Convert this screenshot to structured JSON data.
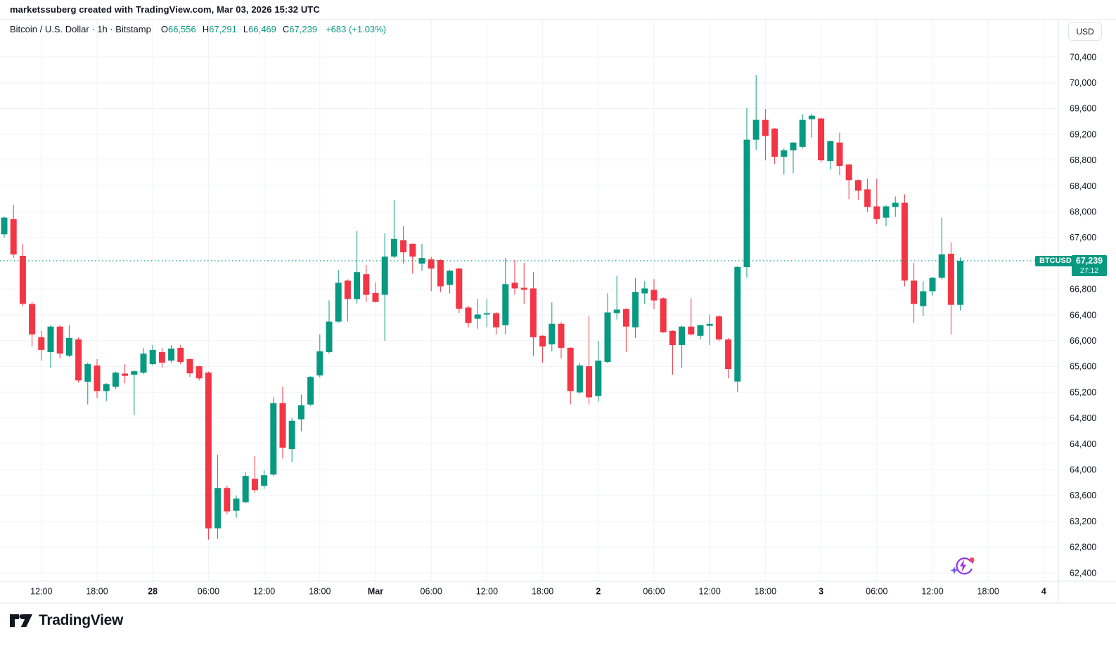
{
  "attribution": {
    "text": "marketssuberg created with TradingView.com, Mar 03, 2026 15:32 UTC"
  },
  "legend": {
    "title": "Bitcoin / U.S. Dollar · 1h · Bitstamp",
    "ohlc": [
      {
        "label": "O",
        "value": "66,556"
      },
      {
        "label": "H",
        "value": "67,291"
      },
      {
        "label": "L",
        "value": "66,469"
      },
      {
        "label": "C",
        "value": "67,239"
      }
    ],
    "change": "+683 (+1.03%)"
  },
  "price_scale": {
    "currency_button": "USD"
  },
  "price_line": {
    "symbol": "BTCUSD",
    "price": "67,239",
    "countdown": "27:12",
    "value": 67239
  },
  "footer": {
    "brand": "TradingView"
  },
  "colors": {
    "up": "#089981",
    "down": "#F23645",
    "text": "#131722",
    "grid": "#F0F2F6",
    "border": "#E0E3EB",
    "accent": "#089981",
    "icon_purple": "#9333EA",
    "icon_red": "#F6465D",
    "icon_star": "#6D5BF6"
  },
  "chart_data": {
    "type": "candlestick",
    "symbol": "BTCUSD",
    "pair": "Bitcoin / U.S. Dollar",
    "interval": "1h",
    "exchange": "Bitstamp",
    "start_time": "2026-02-27 08:00 UTC",
    "interval_hours": 1,
    "grid": true,
    "y_axis_side": "right",
    "y_tick_step": 400,
    "y_ticks": [
      70400,
      70000,
      69600,
      69200,
      68800,
      68400,
      68000,
      67600,
      66800,
      66400,
      66000,
      65600,
      65200,
      64800,
      64400,
      64000,
      63600,
      63200,
      62800,
      62400
    ],
    "ylim": [
      62212,
      70982
    ],
    "last_close": 67239,
    "time_labels": [
      {
        "label": "12:00",
        "index": 4,
        "bold": false
      },
      {
        "label": "18:00",
        "index": 10,
        "bold": false
      },
      {
        "label": "28",
        "index": 16,
        "bold": true
      },
      {
        "label": "06:00",
        "index": 22,
        "bold": false
      },
      {
        "label": "12:00",
        "index": 28,
        "bold": false
      },
      {
        "label": "18:00",
        "index": 34,
        "bold": false
      },
      {
        "label": "Mar",
        "index": 40,
        "bold": true
      },
      {
        "label": "06:00",
        "index": 46,
        "bold": false
      },
      {
        "label": "12:00",
        "index": 52,
        "bold": false
      },
      {
        "label": "18:00",
        "index": 58,
        "bold": false
      },
      {
        "label": "2",
        "index": 64,
        "bold": true
      },
      {
        "label": "06:00",
        "index": 70,
        "bold": false
      },
      {
        "label": "12:00",
        "index": 76,
        "bold": false
      },
      {
        "label": "18:00",
        "index": 82,
        "bold": false
      },
      {
        "label": "3",
        "index": 88,
        "bold": true
      },
      {
        "label": "06:00",
        "index": 94,
        "bold": false
      },
      {
        "label": "12:00",
        "index": 100,
        "bold": false
      },
      {
        "label": "18:00",
        "index": 106,
        "bold": false
      },
      {
        "label": "4",
        "index": 112,
        "bold": true
      }
    ],
    "candles": [
      [
        67650,
        67920,
        67600,
        67908
      ],
      [
        67886,
        68105,
        67282,
        67337
      ],
      [
        67315,
        67502,
        66536,
        66569
      ],
      [
        66569,
        66600,
        65910,
        66097
      ],
      [
        66053,
        66152,
        65691,
        65856
      ],
      [
        65822,
        66240,
        65581,
        66218
      ],
      [
        66218,
        66240,
        65724,
        65800
      ],
      [
        65767,
        66240,
        65746,
        66042
      ],
      [
        66020,
        66050,
        65350,
        65383
      ],
      [
        65361,
        65660,
        65010,
        65636
      ],
      [
        65614,
        65713,
        65109,
        65219
      ],
      [
        65219,
        65340,
        65065,
        65328
      ],
      [
        65284,
        65520,
        65250,
        65504
      ],
      [
        65490,
        65636,
        65339,
        65455
      ],
      [
        65471,
        65540,
        64844,
        65526
      ],
      [
        65504,
        65888,
        65480,
        65800
      ],
      [
        65636,
        65932,
        65614,
        65856
      ],
      [
        65822,
        65888,
        65581,
        65658
      ],
      [
        65691,
        65932,
        65658,
        65878
      ],
      [
        65888,
        65930,
        65636,
        65669
      ],
      [
        65713,
        65720,
        65438,
        65493
      ],
      [
        65603,
        65610,
        65383,
        65416
      ],
      [
        65504,
        65520,
        62914,
        63089
      ],
      [
        63089,
        64231,
        62925,
        63715
      ],
      [
        63715,
        63750,
        63310,
        63352
      ],
      [
        63363,
        63600,
        63254,
        63550
      ],
      [
        63495,
        63957,
        63480,
        63902
      ],
      [
        63858,
        64209,
        63638,
        63682
      ],
      [
        63748,
        63990,
        63700,
        63913
      ],
      [
        63924,
        65120,
        63900,
        65032
      ],
      [
        65032,
        65284,
        64176,
        64341
      ],
      [
        64319,
        64800,
        64121,
        64758
      ],
      [
        64781,
        65164,
        64594,
        65000
      ],
      [
        65010,
        65449,
        64990,
        65438
      ],
      [
        65460,
        66097,
        65430,
        65834
      ],
      [
        65822,
        66624,
        65800,
        66295
      ],
      [
        66295,
        67096,
        66280,
        66898
      ],
      [
        66931,
        66950,
        66295,
        66645
      ],
      [
        66645,
        67701,
        66569,
        67063
      ],
      [
        67030,
        67173,
        66602,
        66711
      ],
      [
        66740,
        66900,
        66591,
        66600
      ],
      [
        66711,
        67668,
        65998,
        67304
      ],
      [
        67304,
        68181,
        67280,
        67579
      ],
      [
        67557,
        67777,
        67195,
        67370
      ],
      [
        67502,
        67510,
        67041,
        67304
      ],
      [
        67195,
        67502,
        67085,
        67282
      ],
      [
        67260,
        67304,
        66766,
        67118
      ],
      [
        67249,
        67260,
        66755,
        66843
      ],
      [
        66865,
        67100,
        66734,
        67085
      ],
      [
        67118,
        67130,
        66426,
        66492
      ],
      [
        66514,
        66540,
        66207,
        66273
      ],
      [
        66339,
        66645,
        66185,
        66405
      ],
      [
        66405,
        66645,
        66207,
        66426
      ],
      [
        66426,
        66440,
        66097,
        66207
      ],
      [
        66240,
        67282,
        66097,
        66876
      ],
      [
        66898,
        67249,
        66711,
        66810
      ],
      [
        66820,
        67205,
        66569,
        66790
      ],
      [
        66810,
        67063,
        65767,
        66053
      ],
      [
        66075,
        66085,
        65658,
        65910
      ],
      [
        65943,
        66591,
        65834,
        66262
      ],
      [
        66262,
        66290,
        65724,
        65889
      ],
      [
        65889,
        65900,
        65010,
        65219
      ],
      [
        65197,
        65650,
        65180,
        65614
      ],
      [
        65603,
        66383,
        65010,
        65120
      ],
      [
        65142,
        65998,
        65054,
        65691
      ],
      [
        65669,
        66734,
        65650,
        66438
      ],
      [
        66427,
        67008,
        66328,
        66482
      ],
      [
        66492,
        66500,
        65822,
        66218
      ],
      [
        66207,
        66975,
        66042,
        66755
      ],
      [
        66733,
        66920,
        66569,
        66810
      ],
      [
        66788,
        66953,
        66492,
        66623
      ],
      [
        66656,
        66670,
        66120,
        66130
      ],
      [
        66152,
        66160,
        65471,
        65932
      ],
      [
        65932,
        66230,
        65581,
        66218
      ],
      [
        66218,
        66656,
        66080,
        66097
      ],
      [
        66075,
        66250,
        66020,
        66240
      ],
      [
        66230,
        66405,
        65932,
        66260
      ],
      [
        66376,
        66400,
        65990,
        66018
      ],
      [
        66018,
        66040,
        65418,
        65560
      ],
      [
        65365,
        67163,
        65200,
        67141
      ],
      [
        67141,
        69608,
        66975,
        69117
      ],
      [
        69117,
        70117,
        68961,
        69423
      ],
      [
        69423,
        69594,
        68797,
        69172
      ],
      [
        69288,
        69300,
        68742,
        68852
      ],
      [
        68852,
        68980,
        68577,
        68951
      ],
      [
        68951,
        69080,
        68599,
        69072
      ],
      [
        69006,
        69511,
        68980,
        69423
      ],
      [
        69434,
        69520,
        69150,
        69489
      ],
      [
        69445,
        69460,
        68764,
        68797
      ],
      [
        68786,
        69100,
        68654,
        69094
      ],
      [
        69072,
        69225,
        68566,
        68709
      ],
      [
        68731,
        68740,
        68193,
        68489
      ],
      [
        68489,
        68500,
        68182,
        68325
      ],
      [
        68347,
        68511,
        67996,
        68072
      ],
      [
        68083,
        68511,
        67809,
        67886
      ],
      [
        67908,
        68100,
        67776,
        68083
      ],
      [
        68072,
        68237,
        67919,
        68138
      ],
      [
        68138,
        68270,
        66843,
        66931
      ],
      [
        66931,
        67205,
        66273,
        66569
      ],
      [
        66536,
        66920,
        66383,
        66766
      ],
      [
        66766,
        66990,
        66700,
        66975
      ],
      [
        66975,
        67908,
        66950,
        67337
      ],
      [
        67348,
        67524,
        66097,
        66556
      ],
      [
        66556,
        67291,
        66469,
        67239
      ]
    ]
  }
}
